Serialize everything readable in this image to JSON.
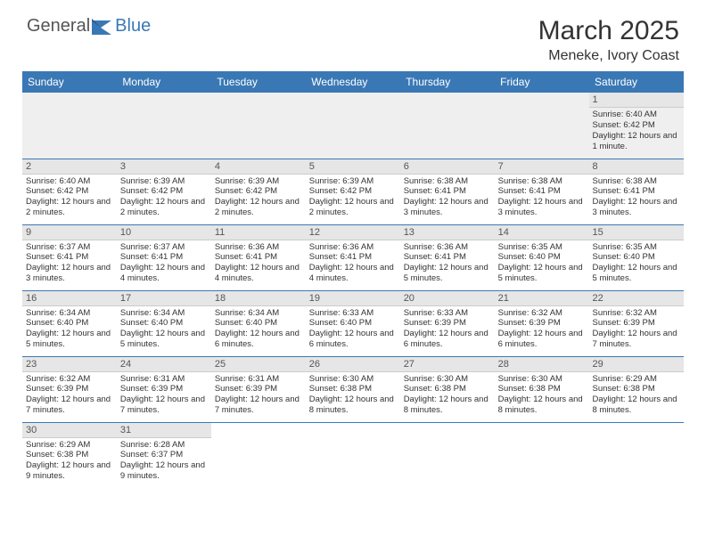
{
  "logo": {
    "text_a": "General",
    "text_b": "Blue"
  },
  "title": "March 2025",
  "location": "Meneke, Ivory Coast",
  "colors": {
    "header_bg": "#3a78b5",
    "header_fg": "#ffffff",
    "daynum_bg": "#e6e6e6",
    "border": "#3a78b5",
    "text": "#333333"
  },
  "weekdays": [
    "Sunday",
    "Monday",
    "Tuesday",
    "Wednesday",
    "Thursday",
    "Friday",
    "Saturday"
  ],
  "weeks": [
    [
      {
        "n": "",
        "sr": "",
        "ss": "",
        "dl": ""
      },
      {
        "n": "",
        "sr": "",
        "ss": "",
        "dl": ""
      },
      {
        "n": "",
        "sr": "",
        "ss": "",
        "dl": ""
      },
      {
        "n": "",
        "sr": "",
        "ss": "",
        "dl": ""
      },
      {
        "n": "",
        "sr": "",
        "ss": "",
        "dl": ""
      },
      {
        "n": "",
        "sr": "",
        "ss": "",
        "dl": ""
      },
      {
        "n": "1",
        "sr": "Sunrise: 6:40 AM",
        "ss": "Sunset: 6:42 PM",
        "dl": "Daylight: 12 hours and 1 minute."
      }
    ],
    [
      {
        "n": "2",
        "sr": "Sunrise: 6:40 AM",
        "ss": "Sunset: 6:42 PM",
        "dl": "Daylight: 12 hours and 2 minutes."
      },
      {
        "n": "3",
        "sr": "Sunrise: 6:39 AM",
        "ss": "Sunset: 6:42 PM",
        "dl": "Daylight: 12 hours and 2 minutes."
      },
      {
        "n": "4",
        "sr": "Sunrise: 6:39 AM",
        "ss": "Sunset: 6:42 PM",
        "dl": "Daylight: 12 hours and 2 minutes."
      },
      {
        "n": "5",
        "sr": "Sunrise: 6:39 AM",
        "ss": "Sunset: 6:42 PM",
        "dl": "Daylight: 12 hours and 2 minutes."
      },
      {
        "n": "6",
        "sr": "Sunrise: 6:38 AM",
        "ss": "Sunset: 6:41 PM",
        "dl": "Daylight: 12 hours and 3 minutes."
      },
      {
        "n": "7",
        "sr": "Sunrise: 6:38 AM",
        "ss": "Sunset: 6:41 PM",
        "dl": "Daylight: 12 hours and 3 minutes."
      },
      {
        "n": "8",
        "sr": "Sunrise: 6:38 AM",
        "ss": "Sunset: 6:41 PM",
        "dl": "Daylight: 12 hours and 3 minutes."
      }
    ],
    [
      {
        "n": "9",
        "sr": "Sunrise: 6:37 AM",
        "ss": "Sunset: 6:41 PM",
        "dl": "Daylight: 12 hours and 3 minutes."
      },
      {
        "n": "10",
        "sr": "Sunrise: 6:37 AM",
        "ss": "Sunset: 6:41 PM",
        "dl": "Daylight: 12 hours and 4 minutes."
      },
      {
        "n": "11",
        "sr": "Sunrise: 6:36 AM",
        "ss": "Sunset: 6:41 PM",
        "dl": "Daylight: 12 hours and 4 minutes."
      },
      {
        "n": "12",
        "sr": "Sunrise: 6:36 AM",
        "ss": "Sunset: 6:41 PM",
        "dl": "Daylight: 12 hours and 4 minutes."
      },
      {
        "n": "13",
        "sr": "Sunrise: 6:36 AM",
        "ss": "Sunset: 6:41 PM",
        "dl": "Daylight: 12 hours and 5 minutes."
      },
      {
        "n": "14",
        "sr": "Sunrise: 6:35 AM",
        "ss": "Sunset: 6:40 PM",
        "dl": "Daylight: 12 hours and 5 minutes."
      },
      {
        "n": "15",
        "sr": "Sunrise: 6:35 AM",
        "ss": "Sunset: 6:40 PM",
        "dl": "Daylight: 12 hours and 5 minutes."
      }
    ],
    [
      {
        "n": "16",
        "sr": "Sunrise: 6:34 AM",
        "ss": "Sunset: 6:40 PM",
        "dl": "Daylight: 12 hours and 5 minutes."
      },
      {
        "n": "17",
        "sr": "Sunrise: 6:34 AM",
        "ss": "Sunset: 6:40 PM",
        "dl": "Daylight: 12 hours and 5 minutes."
      },
      {
        "n": "18",
        "sr": "Sunrise: 6:34 AM",
        "ss": "Sunset: 6:40 PM",
        "dl": "Daylight: 12 hours and 6 minutes."
      },
      {
        "n": "19",
        "sr": "Sunrise: 6:33 AM",
        "ss": "Sunset: 6:40 PM",
        "dl": "Daylight: 12 hours and 6 minutes."
      },
      {
        "n": "20",
        "sr": "Sunrise: 6:33 AM",
        "ss": "Sunset: 6:39 PM",
        "dl": "Daylight: 12 hours and 6 minutes."
      },
      {
        "n": "21",
        "sr": "Sunrise: 6:32 AM",
        "ss": "Sunset: 6:39 PM",
        "dl": "Daylight: 12 hours and 6 minutes."
      },
      {
        "n": "22",
        "sr": "Sunrise: 6:32 AM",
        "ss": "Sunset: 6:39 PM",
        "dl": "Daylight: 12 hours and 7 minutes."
      }
    ],
    [
      {
        "n": "23",
        "sr": "Sunrise: 6:32 AM",
        "ss": "Sunset: 6:39 PM",
        "dl": "Daylight: 12 hours and 7 minutes."
      },
      {
        "n": "24",
        "sr": "Sunrise: 6:31 AM",
        "ss": "Sunset: 6:39 PM",
        "dl": "Daylight: 12 hours and 7 minutes."
      },
      {
        "n": "25",
        "sr": "Sunrise: 6:31 AM",
        "ss": "Sunset: 6:39 PM",
        "dl": "Daylight: 12 hours and 7 minutes."
      },
      {
        "n": "26",
        "sr": "Sunrise: 6:30 AM",
        "ss": "Sunset: 6:38 PM",
        "dl": "Daylight: 12 hours and 8 minutes."
      },
      {
        "n": "27",
        "sr": "Sunrise: 6:30 AM",
        "ss": "Sunset: 6:38 PM",
        "dl": "Daylight: 12 hours and 8 minutes."
      },
      {
        "n": "28",
        "sr": "Sunrise: 6:30 AM",
        "ss": "Sunset: 6:38 PM",
        "dl": "Daylight: 12 hours and 8 minutes."
      },
      {
        "n": "29",
        "sr": "Sunrise: 6:29 AM",
        "ss": "Sunset: 6:38 PM",
        "dl": "Daylight: 12 hours and 8 minutes."
      }
    ],
    [
      {
        "n": "30",
        "sr": "Sunrise: 6:29 AM",
        "ss": "Sunset: 6:38 PM",
        "dl": "Daylight: 12 hours and 9 minutes."
      },
      {
        "n": "31",
        "sr": "Sunrise: 6:28 AM",
        "ss": "Sunset: 6:37 PM",
        "dl": "Daylight: 12 hours and 9 minutes."
      },
      {
        "n": "",
        "sr": "",
        "ss": "",
        "dl": ""
      },
      {
        "n": "",
        "sr": "",
        "ss": "",
        "dl": ""
      },
      {
        "n": "",
        "sr": "",
        "ss": "",
        "dl": ""
      },
      {
        "n": "",
        "sr": "",
        "ss": "",
        "dl": ""
      },
      {
        "n": "",
        "sr": "",
        "ss": "",
        "dl": ""
      }
    ]
  ]
}
